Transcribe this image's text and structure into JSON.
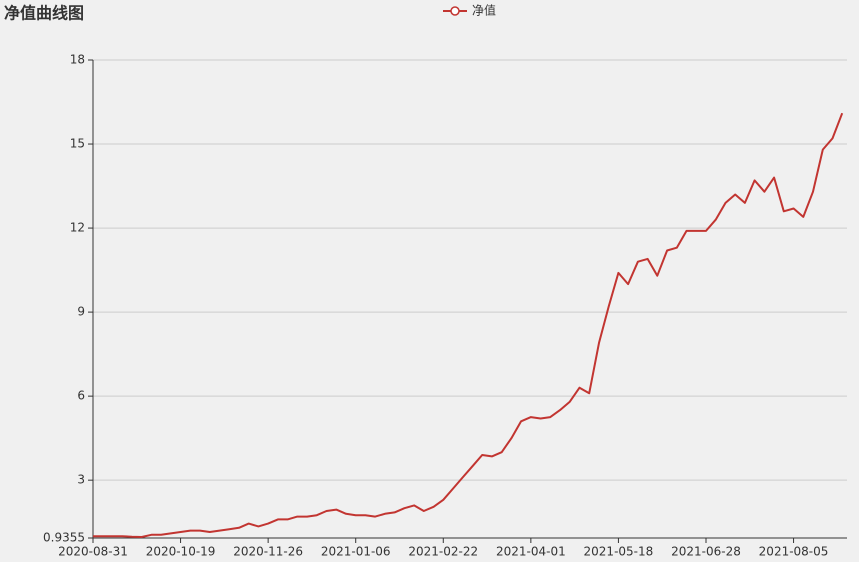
{
  "chart_data": {
    "type": "line",
    "title": "净值曲线图",
    "categories": [
      "2020-08-31",
      null,
      null,
      null,
      null,
      null,
      null,
      null,
      null,
      "2020-10-19",
      null,
      null,
      null,
      null,
      null,
      null,
      null,
      null,
      "2020-11-26",
      null,
      null,
      null,
      null,
      null,
      null,
      null,
      null,
      "2021-01-06",
      null,
      null,
      null,
      null,
      null,
      null,
      null,
      null,
      "2021-02-22",
      null,
      null,
      null,
      null,
      null,
      null,
      null,
      null,
      "2021-04-01",
      null,
      null,
      null,
      null,
      null,
      null,
      null,
      null,
      "2021-05-18",
      null,
      null,
      null,
      null,
      null,
      null,
      null,
      null,
      "2021-06-28",
      null,
      null,
      null,
      null,
      null,
      null,
      null,
      null,
      "2021-08-05",
      null,
      null,
      null,
      null,
      null
    ],
    "series": [
      {
        "name": "净值",
        "color": "#c23531",
        "values": [
          1.0,
          1.0,
          1.0,
          1.0,
          0.98,
          0.97,
          1.05,
          1.05,
          1.1,
          1.15,
          1.2,
          1.2,
          1.15,
          1.2,
          1.25,
          1.3,
          1.45,
          1.35,
          1.45,
          1.6,
          1.6,
          1.7,
          1.7,
          1.75,
          1.9,
          1.95,
          1.8,
          1.75,
          1.75,
          1.7,
          1.8,
          1.85,
          2.0,
          2.1,
          1.9,
          2.05,
          2.3,
          2.7,
          3.1,
          3.5,
          3.9,
          3.85,
          4.0,
          4.5,
          5.1,
          5.25,
          5.2,
          5.25,
          5.5,
          5.8,
          6.3,
          6.1,
          7.9,
          9.2,
          10.4,
          10.0,
          10.8,
          10.9,
          10.3,
          11.2,
          11.3,
          11.9,
          11.9,
          11.9,
          12.3,
          12.9,
          13.2,
          12.9,
          13.7,
          13.3,
          13.8,
          12.6,
          12.7,
          12.4,
          13.3,
          14.8,
          15.2,
          16.1
        ]
      }
    ],
    "ylim": [
      0.9355,
      18
    ],
    "yticks": [
      0.9355,
      3,
      6,
      9,
      12,
      15,
      18
    ],
    "grid": true
  }
}
